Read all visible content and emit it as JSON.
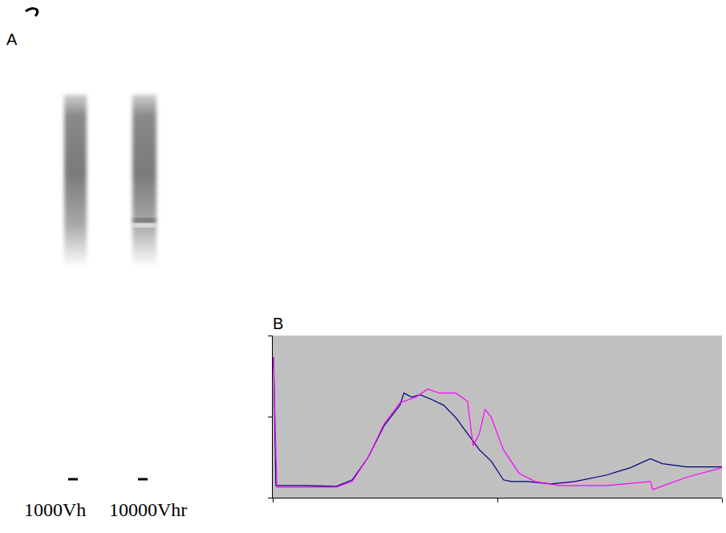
{
  "panel_a": {
    "label": "A",
    "lanes": [
      "1000Vh",
      "10000Vhr"
    ]
  },
  "chart_data": {
    "panel_label": "B",
    "type": "line",
    "xlim": [
      0,
      200
    ],
    "xticks": [
      0,
      100,
      200
    ],
    "ylim": [
      0,
      2
    ],
    "yticks": [
      0,
      1,
      2
    ],
    "tick_labels": false,
    "grid": false,
    "series": [
      {
        "color": "#000080",
        "x": [
          0.35,
          1.4,
          14.2,
          28.3,
          35.4,
          42.5,
          49.6,
          56.6,
          58.4,
          61.9,
          65.5,
          70.8,
          76.1,
          81.4,
          86.7,
          92.0,
          97.3,
          102.7,
          106.2,
          113.3,
          123.9,
          134.5,
          148.7,
          159.3,
          168.1,
          173.5,
          184.1,
          200
        ],
        "values": [
          1.73,
          0.15,
          0.15,
          0.14,
          0.22,
          0.5,
          0.89,
          1.14,
          1.29,
          1.24,
          1.27,
          1.21,
          1.14,
          0.99,
          0.79,
          0.59,
          0.45,
          0.22,
          0.2,
          0.2,
          0.17,
          0.2,
          0.28,
          0.37,
          0.48,
          0.42,
          0.38,
          0.38
        ]
      },
      {
        "color": "#ff00ff",
        "x": [
          0.35,
          1.8,
          28.3,
          35.4,
          42.5,
          49.6,
          56.6,
          63.7,
          69.0,
          74.3,
          81.4,
          86.7,
          89.2,
          92.0,
          94.5,
          97.3,
          102.7,
          109.7,
          116.8,
          127.4,
          148.7,
          168.1,
          169.2,
          184.1,
          200
        ],
        "values": [
          1.73,
          0.13,
          0.13,
          0.2,
          0.5,
          0.91,
          1.17,
          1.24,
          1.34,
          1.29,
          1.29,
          1.19,
          0.64,
          0.79,
          1.09,
          0.99,
          0.59,
          0.3,
          0.2,
          0.15,
          0.15,
          0.2,
          0.1,
          0.25,
          0.37
        ]
      }
    ]
  }
}
